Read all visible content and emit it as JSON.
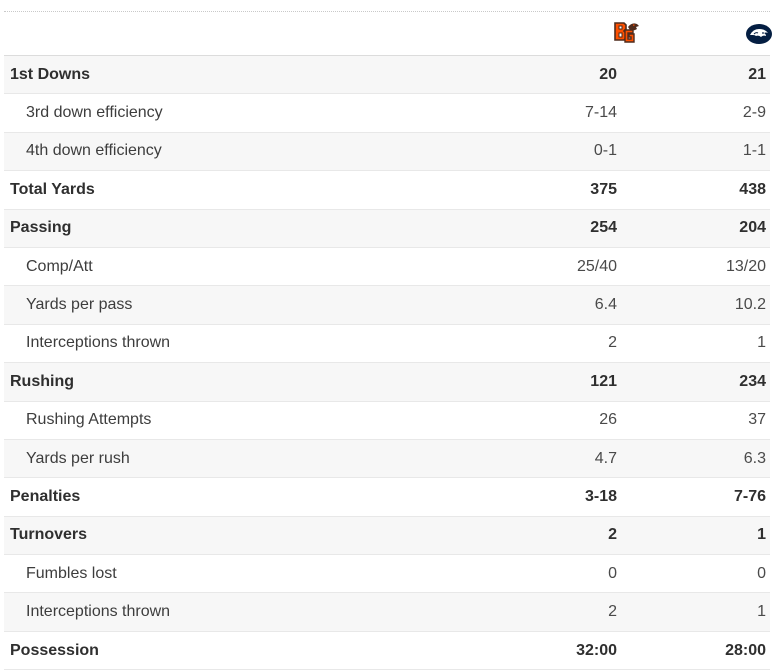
{
  "teams": {
    "home": {
      "name": "Bowling Green",
      "logo_icon": "bowling-green-falcon-logo-icon",
      "colors": {
        "orange": "#fe5000",
        "brown": "#4f2c1d"
      }
    },
    "away": {
      "name": "Penn State",
      "logo_icon": "penn-state-lion-logo-icon",
      "colors": {
        "navy": "#041e42",
        "white": "#ffffff"
      }
    }
  },
  "stats": [
    {
      "label": "1st Downs",
      "home": "20",
      "away": "21",
      "kind": "main"
    },
    {
      "label": "3rd down efficiency",
      "home": "7-14",
      "away": "2-9",
      "kind": "sub"
    },
    {
      "label": "4th down efficiency",
      "home": "0-1",
      "away": "1-1",
      "kind": "sub"
    },
    {
      "label": "Total Yards",
      "home": "375",
      "away": "438",
      "kind": "main"
    },
    {
      "label": "Passing",
      "home": "254",
      "away": "204",
      "kind": "main"
    },
    {
      "label": "Comp/Att",
      "home": "25/40",
      "away": "13/20",
      "kind": "sub"
    },
    {
      "label": "Yards per pass",
      "home": "6.4",
      "away": "10.2",
      "kind": "sub"
    },
    {
      "label": "Interceptions thrown",
      "home": "2",
      "away": "1",
      "kind": "sub"
    },
    {
      "label": "Rushing",
      "home": "121",
      "away": "234",
      "kind": "main"
    },
    {
      "label": "Rushing Attempts",
      "home": "26",
      "away": "37",
      "kind": "sub"
    },
    {
      "label": "Yards per rush",
      "home": "4.7",
      "away": "6.3",
      "kind": "sub"
    },
    {
      "label": "Penalties",
      "home": "3-18",
      "away": "7-76",
      "kind": "main"
    },
    {
      "label": "Turnovers",
      "home": "2",
      "away": "1",
      "kind": "main"
    },
    {
      "label": "Fumbles lost",
      "home": "0",
      "away": "0",
      "kind": "sub"
    },
    {
      "label": "Interceptions thrown",
      "home": "2",
      "away": "1",
      "kind": "sub"
    },
    {
      "label": "Possession",
      "home": "32:00",
      "away": "28:00",
      "kind": "main"
    }
  ]
}
